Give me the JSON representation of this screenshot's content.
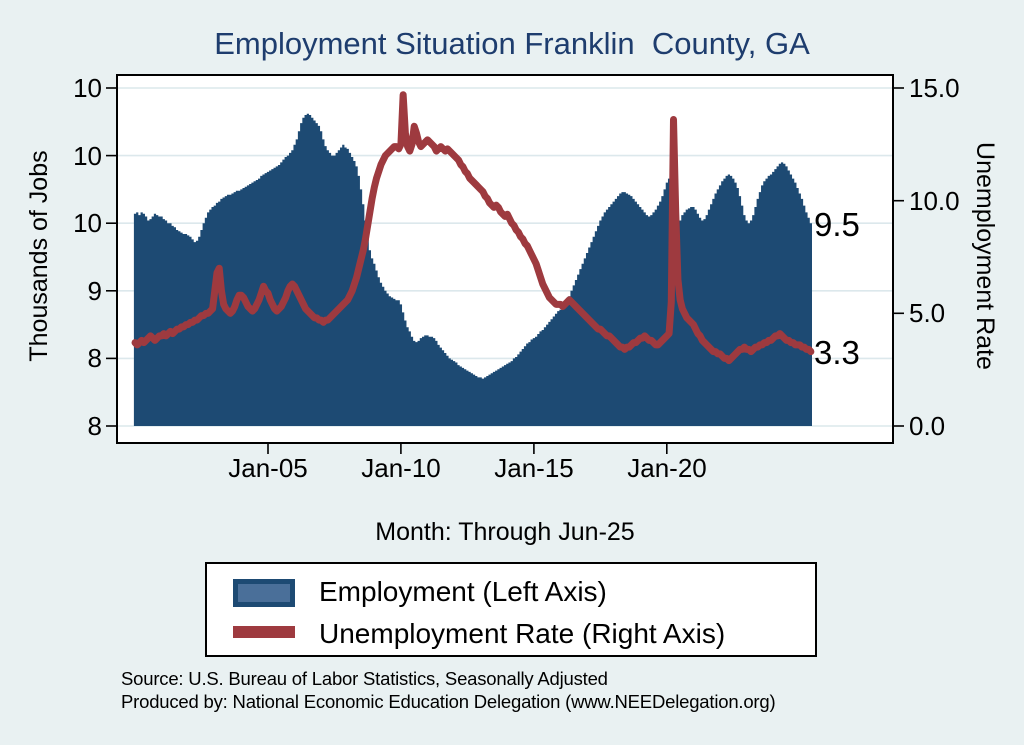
{
  "title": "Employment Situation Franklin  County, GA",
  "axes": {
    "left_title": "Thousands of Jobs",
    "right_title": "Unemployment Rate",
    "x_title": "Month: Through Jun-25",
    "left_tick_labels": [
      "10",
      "10",
      "10",
      "9",
      "8",
      "8"
    ],
    "right_tick_labels": [
      "15.0",
      "10.0",
      "5.0",
      "0.0"
    ],
    "x_tick_labels": [
      "Jan-05",
      "Jan-10",
      "Jan-15",
      "Jan-20"
    ]
  },
  "annotations": {
    "employment_last_value": "9.5",
    "unemployment_last_value": "3.3"
  },
  "legend": {
    "employment_label": "Employment (Left Axis)",
    "unemployment_label": "Unemployment Rate (Right Axis)"
  },
  "source": {
    "line1": "Source: U.S. Bureau of Labor Statistics, Seasonally Adjusted",
    "line2": "Produced by: National Economic Education Delegation (www.NEEDelegation.org)"
  },
  "colors": {
    "background": "#e9f1f2",
    "plot_background": "#ffffff",
    "employment_fill": "#1d4a73",
    "legend_employment_inner": "#4a6f99",
    "unemployment_line": "#9e3a3f",
    "gridline": "#dce8ec",
    "title_text": "#1e3d6e"
  },
  "chart_data": {
    "type": "dual-axis (area + line)",
    "x_unit": "month",
    "x_start": "2000-01",
    "x_end": "2025-06",
    "x_ticks": [
      {
        "label": "Jan-05",
        "month_index": 60
      },
      {
        "label": "Jan-10",
        "month_index": 120
      },
      {
        "label": "Jan-15",
        "month_index": 180
      },
      {
        "label": "Jan-20",
        "month_index": 240
      }
    ],
    "left_axis": {
      "label": "Thousands of Jobs",
      "range": [
        8,
        10.5
      ],
      "ticks": [
        10.5,
        10,
        9.5,
        9,
        8.5,
        8
      ],
      "tick_labels_shown": [
        "10",
        "10",
        "10",
        "9",
        "8",
        "8"
      ],
      "grid": true
    },
    "right_axis": {
      "label": "Unemployment Rate",
      "range": [
        0,
        15
      ],
      "ticks": [
        15,
        10,
        5,
        0
      ],
      "tick_labels_shown": [
        "15.0",
        "10.0",
        "5.0",
        "0.0"
      ]
    },
    "legend_position": "bottom",
    "series": [
      {
        "name": "Employment (Left Axis)",
        "type": "bar",
        "axis": "left",
        "color": "#1d4a73",
        "last_value_label": "9.5",
        "values": [
          9.57,
          9.58,
          9.56,
          9.58,
          9.57,
          9.55,
          9.52,
          9.53,
          9.55,
          9.57,
          9.56,
          9.55,
          9.55,
          9.53,
          9.52,
          9.5,
          9.5,
          9.48,
          9.47,
          9.45,
          9.44,
          9.43,
          9.42,
          9.42,
          9.41,
          9.4,
          9.38,
          9.36,
          9.37,
          9.4,
          9.45,
          9.5,
          9.54,
          9.58,
          9.6,
          9.62,
          9.63,
          9.65,
          9.66,
          9.68,
          9.69,
          9.7,
          9.71,
          9.71,
          9.72,
          9.73,
          9.74,
          9.74,
          9.75,
          9.76,
          9.77,
          9.78,
          9.79,
          9.8,
          9.81,
          9.82,
          9.83,
          9.85,
          9.86,
          9.87,
          9.88,
          9.89,
          9.9,
          9.91,
          9.92,
          9.93,
          9.95,
          9.97,
          9.99,
          10.0,
          10.02,
          10.04,
          10.08,
          10.12,
          10.18,
          10.24,
          10.28,
          10.3,
          10.31,
          10.3,
          10.28,
          10.26,
          10.24,
          10.22,
          10.18,
          10.12,
          10.07,
          10.04,
          10.02,
          10.0,
          10.0,
          10.02,
          10.04,
          10.06,
          10.08,
          10.06,
          10.05,
          10.02,
          9.99,
          9.96,
          9.92,
          9.85,
          9.75,
          9.64,
          9.52,
          9.4,
          9.3,
          9.24,
          9.2,
          9.15,
          9.1,
          9.06,
          9.03,
          9.0,
          8.98,
          8.96,
          8.95,
          8.94,
          8.93,
          8.93,
          8.9,
          8.84,
          8.78,
          8.73,
          8.7,
          8.66,
          8.63,
          8.62,
          8.63,
          8.65,
          8.66,
          8.67,
          8.67,
          8.66,
          8.66,
          8.65,
          8.63,
          8.6,
          8.58,
          8.56,
          8.54,
          8.52,
          8.5,
          8.49,
          8.48,
          8.47,
          8.45,
          8.44,
          8.43,
          8.42,
          8.41,
          8.4,
          8.39,
          8.38,
          8.37,
          8.36,
          8.36,
          8.35,
          8.36,
          8.37,
          8.38,
          8.39,
          8.4,
          8.41,
          8.42,
          8.43,
          8.44,
          8.45,
          8.46,
          8.47,
          8.48,
          8.5,
          8.51,
          8.53,
          8.55,
          8.57,
          8.59,
          8.61,
          8.62,
          8.64,
          8.65,
          8.66,
          8.68,
          8.7,
          8.71,
          8.73,
          8.75,
          8.77,
          8.79,
          8.81,
          8.83,
          8.85,
          8.86,
          8.88,
          8.9,
          8.93,
          8.96,
          9.0,
          9.04,
          9.08,
          9.12,
          9.16,
          9.2,
          9.24,
          9.28,
          9.32,
          9.36,
          9.4,
          9.44,
          9.48,
          9.52,
          9.55,
          9.58,
          9.6,
          9.62,
          9.64,
          9.66,
          9.68,
          9.7,
          9.72,
          9.73,
          9.73,
          9.72,
          9.71,
          9.7,
          9.68,
          9.66,
          9.64,
          9.62,
          9.6,
          9.58,
          9.56,
          9.55,
          9.56,
          9.58,
          9.6,
          9.63,
          9.66,
          9.7,
          9.75,
          9.8,
          9.83,
          9.75,
          9.3,
          9.35,
          9.45,
          9.52,
          9.56,
          9.58,
          9.6,
          9.61,
          9.62,
          9.62,
          9.6,
          9.57,
          9.54,
          9.52,
          9.53,
          9.56,
          9.6,
          9.64,
          9.68,
          9.72,
          9.75,
          9.78,
          9.81,
          9.83,
          9.85,
          9.86,
          9.85,
          9.83,
          9.8,
          9.76,
          9.7,
          9.63,
          9.56,
          9.52,
          9.5,
          9.52,
          9.56,
          9.62,
          9.68,
          9.73,
          9.78,
          9.81,
          9.83,
          9.85,
          9.86,
          9.88,
          9.9,
          9.92,
          9.94,
          9.95,
          9.94,
          9.92,
          9.89,
          9.86,
          9.83,
          9.8,
          9.76,
          9.72,
          9.68,
          9.63,
          9.58,
          9.54,
          9.5
        ]
      },
      {
        "name": "Unemployment Rate (Right Axis)",
        "type": "line",
        "axis": "right",
        "color": "#9e3a3f",
        "last_value_label": "3.3",
        "values": [
          3.7,
          3.6,
          3.7,
          3.8,
          3.7,
          3.8,
          3.9,
          4.0,
          3.9,
          3.8,
          3.9,
          4.0,
          4.0,
          4.1,
          4.0,
          4.1,
          4.2,
          4.1,
          4.2,
          4.3,
          4.3,
          4.4,
          4.4,
          4.5,
          4.5,
          4.6,
          4.6,
          4.7,
          4.7,
          4.8,
          4.9,
          4.9,
          5.0,
          5.0,
          5.1,
          5.2,
          6.0,
          6.8,
          7.0,
          6.0,
          5.4,
          5.2,
          5.1,
          5.0,
          5.1,
          5.3,
          5.6,
          5.8,
          5.8,
          5.7,
          5.5,
          5.3,
          5.2,
          5.1,
          5.2,
          5.4,
          5.6,
          5.9,
          6.2,
          6.0,
          5.9,
          5.6,
          5.4,
          5.2,
          5.1,
          5.2,
          5.3,
          5.5,
          5.7,
          6.0,
          6.2,
          6.3,
          6.2,
          6.0,
          5.8,
          5.6,
          5.4,
          5.2,
          5.1,
          5.0,
          4.9,
          4.8,
          4.8,
          4.7,
          4.7,
          4.6,
          4.7,
          4.7,
          4.8,
          4.9,
          5.0,
          5.1,
          5.2,
          5.3,
          5.4,
          5.5,
          5.6,
          5.8,
          6.0,
          6.3,
          6.6,
          7.0,
          7.4,
          7.8,
          8.3,
          8.9,
          9.5,
          10.1,
          10.6,
          11.0,
          11.3,
          11.6,
          11.8,
          12.0,
          12.1,
          12.2,
          12.3,
          12.4,
          12.4,
          12.3,
          12.5,
          14.7,
          13.0,
          12.4,
          12.2,
          12.5,
          13.3,
          13.0,
          12.6,
          12.4,
          12.5,
          12.6,
          12.7,
          12.6,
          12.5,
          12.4,
          12.2,
          12.3,
          12.4,
          12.3,
          12.2,
          12.3,
          12.2,
          12.1,
          12.0,
          11.9,
          11.8,
          11.6,
          11.5,
          11.3,
          11.2,
          11.0,
          10.9,
          10.8,
          10.7,
          10.6,
          10.5,
          10.4,
          10.2,
          10.1,
          9.9,
          9.8,
          9.7,
          9.8,
          9.7,
          9.5,
          9.4,
          9.3,
          9.4,
          9.2,
          9.0,
          8.9,
          8.7,
          8.6,
          8.4,
          8.3,
          8.1,
          8.0,
          7.8,
          7.6,
          7.4,
          7.2,
          6.9,
          6.6,
          6.3,
          6.1,
          5.9,
          5.7,
          5.6,
          5.5,
          5.4,
          5.4,
          5.4,
          5.3,
          5.4,
          5.5,
          5.6,
          5.5,
          5.4,
          5.3,
          5.2,
          5.1,
          5.0,
          4.9,
          4.8,
          4.7,
          4.6,
          4.5,
          4.4,
          4.3,
          4.3,
          4.2,
          4.1,
          4.0,
          4.0,
          3.9,
          3.8,
          3.7,
          3.6,
          3.5,
          3.5,
          3.4,
          3.5,
          3.5,
          3.6,
          3.7,
          3.7,
          3.8,
          3.9,
          3.9,
          4.0,
          3.9,
          3.8,
          3.8,
          3.7,
          3.6,
          3.6,
          3.7,
          3.8,
          3.9,
          4.0,
          4.1,
          5.5,
          13.6,
          9.5,
          6.5,
          5.6,
          5.2,
          5.0,
          4.8,
          4.7,
          4.6,
          4.5,
          4.3,
          4.1,
          4.0,
          3.8,
          3.7,
          3.6,
          3.5,
          3.4,
          3.3,
          3.3,
          3.2,
          3.2,
          3.1,
          3.0,
          3.0,
          2.9,
          3.0,
          3.1,
          3.2,
          3.3,
          3.4,
          3.4,
          3.5,
          3.4,
          3.4,
          3.3,
          3.4,
          3.5,
          3.5,
          3.6,
          3.6,
          3.7,
          3.7,
          3.8,
          3.8,
          3.9,
          4.0,
          4.0,
          4.1,
          4.0,
          3.9,
          3.8,
          3.8,
          3.7,
          3.7,
          3.6,
          3.6,
          3.6,
          3.5,
          3.5,
          3.4,
          3.4,
          3.3
        ]
      }
    ]
  }
}
